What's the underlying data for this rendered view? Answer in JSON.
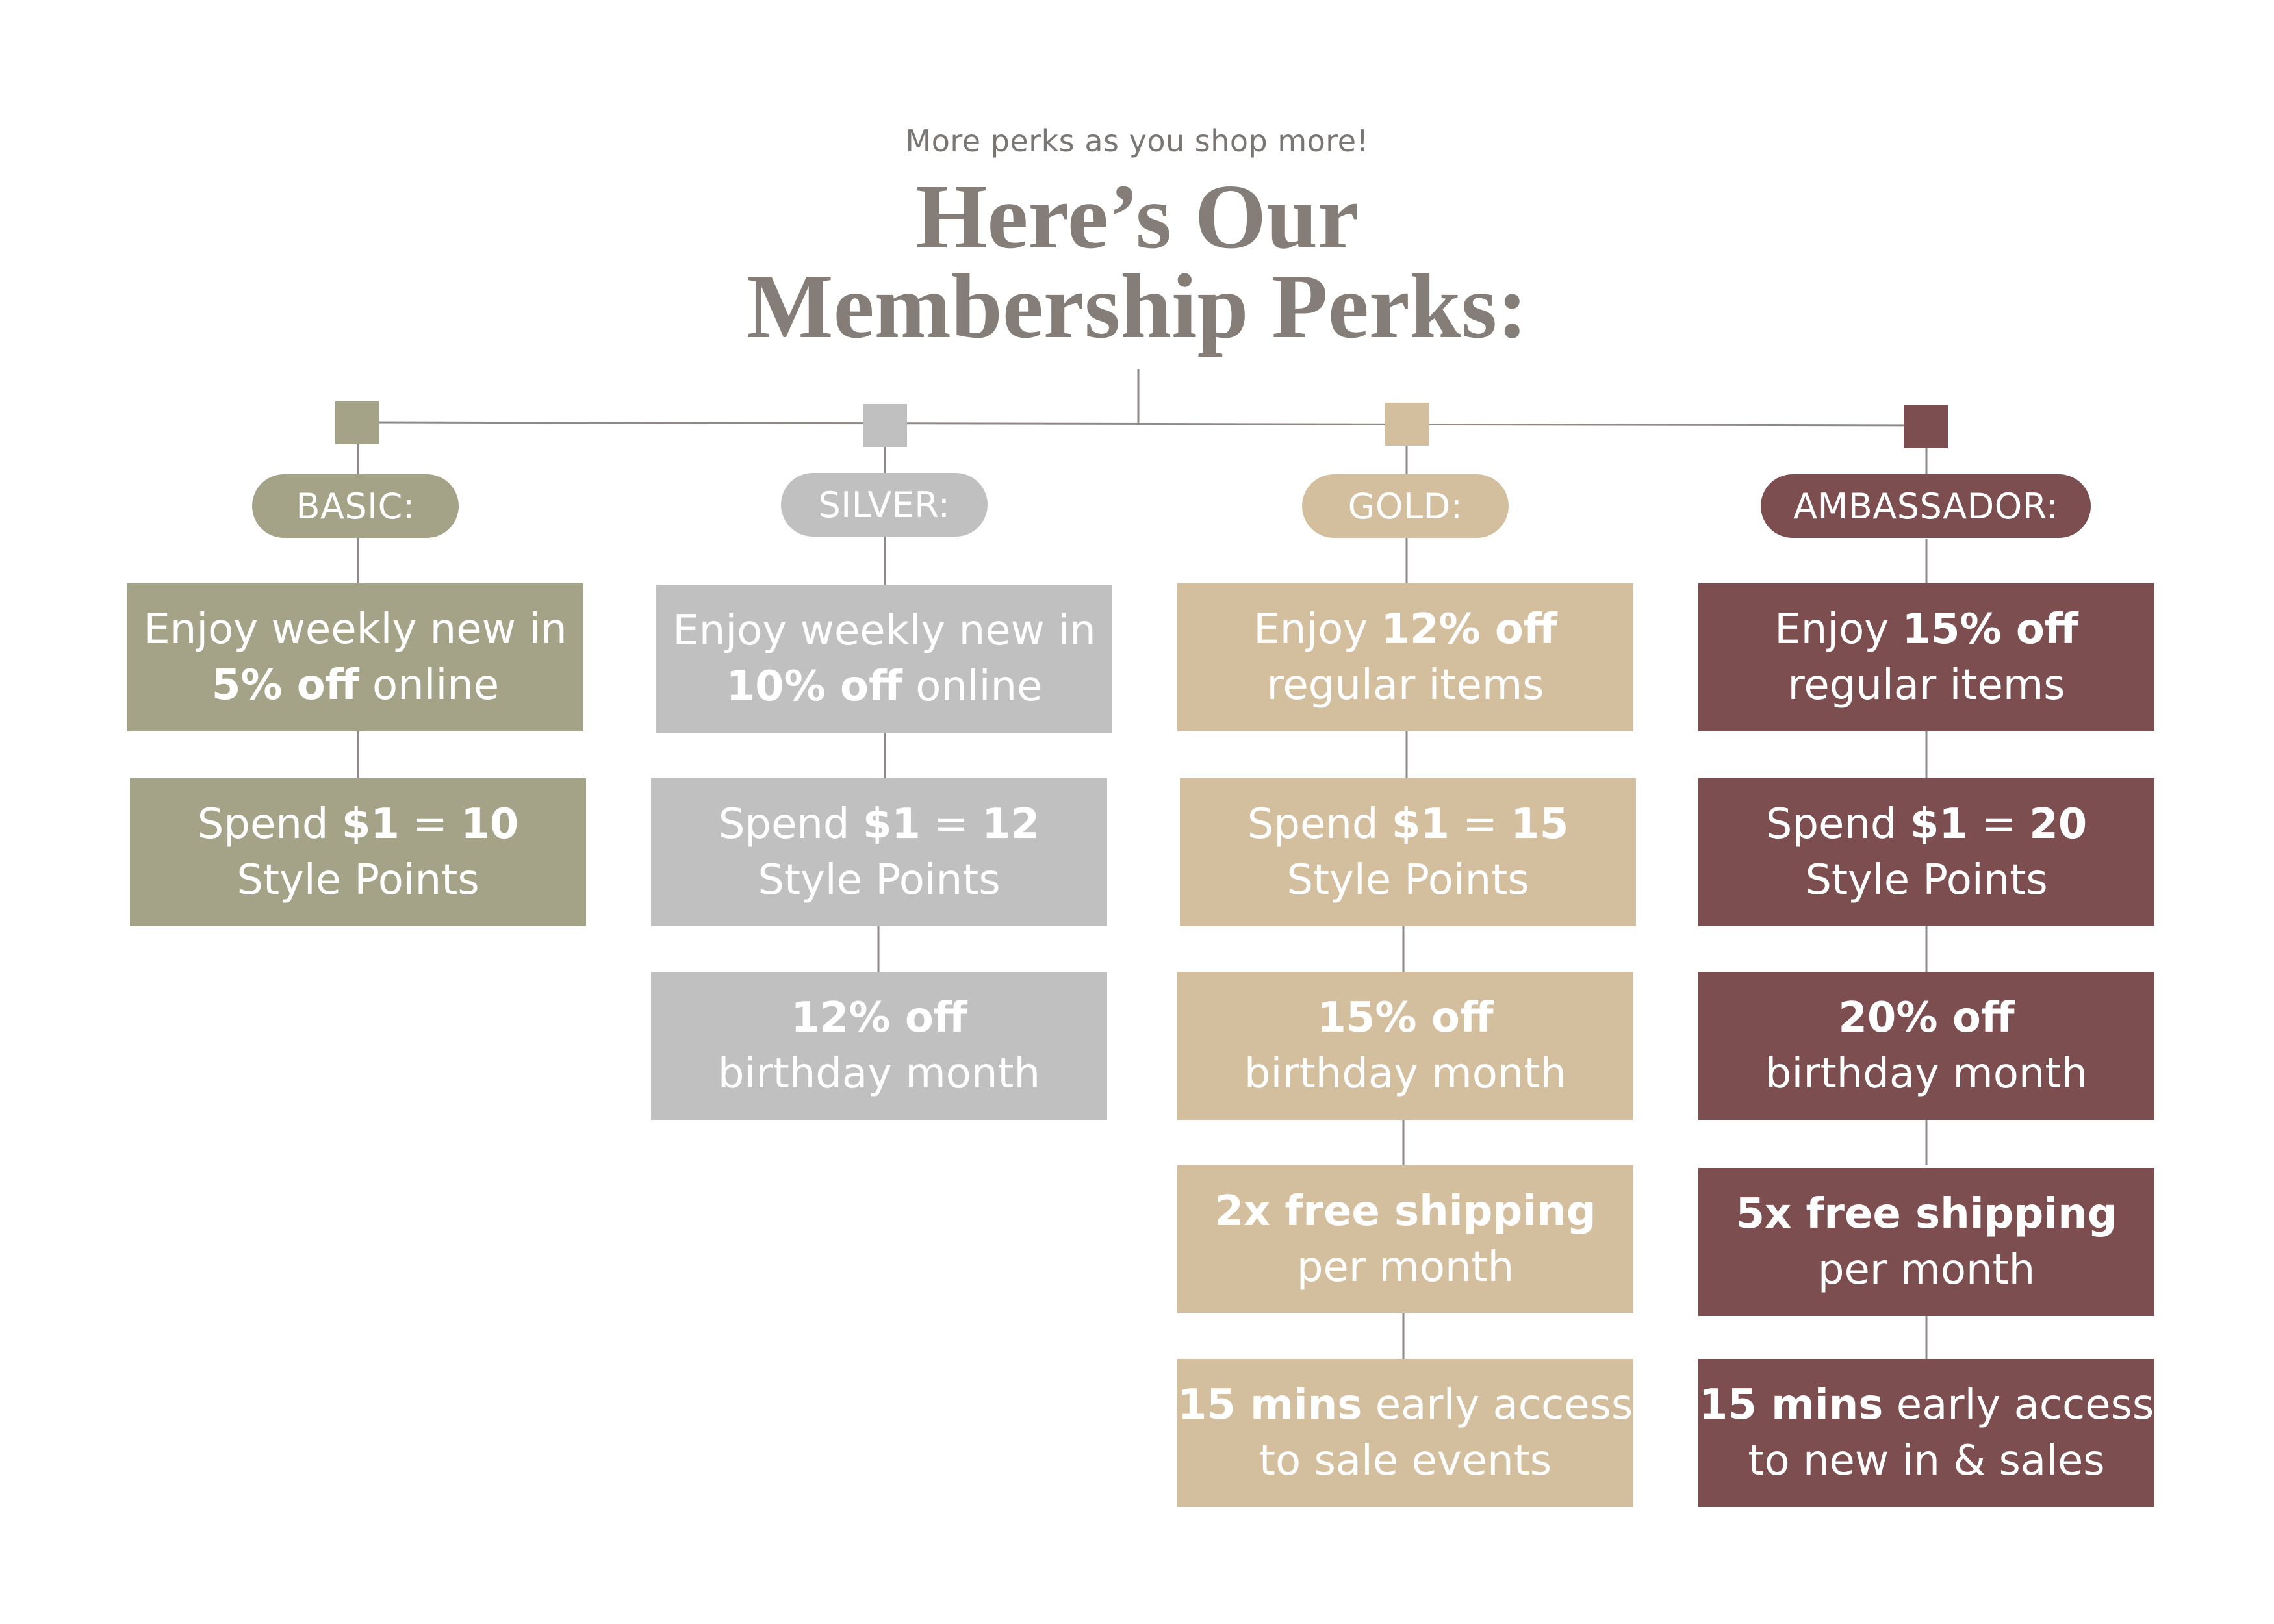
{
  "header": {
    "subtitle": "More perks as you shop more!",
    "title_line1": "Here’s Our",
    "title_line2": "Membership Perks:"
  },
  "colors": {
    "basic": "#a4a387",
    "silver": "#bfc0bf",
    "gold": "#d3bf9d",
    "ambassador": "#7d4e50",
    "title": "#857d77",
    "connector": "#8f8a87"
  },
  "tiers": [
    {
      "name": "BASIC:",
      "perks": [
        {
          "line1": [
            "Enjoy weekly new in"
          ],
          "line2": [
            "5% off",
            " online"
          ]
        },
        {
          "line1": [
            "Spend ",
            "$1",
            " = ",
            "10"
          ],
          "line2": [
            "Style Points"
          ]
        }
      ]
    },
    {
      "name": "SILVER:",
      "perks": [
        {
          "line1": [
            "Enjoy weekly new in"
          ],
          "line2": [
            "10% off",
            " online"
          ]
        },
        {
          "line1": [
            "Spend ",
            "$1",
            " = ",
            "12"
          ],
          "line2": [
            "Style Points"
          ]
        },
        {
          "line1": [
            "12% off"
          ],
          "line2": [
            "birthday month"
          ]
        }
      ]
    },
    {
      "name": "GOLD:",
      "perks": [
        {
          "line1": [
            "Enjoy ",
            "12% off"
          ],
          "line2": [
            "regular items"
          ]
        },
        {
          "line1": [
            "Spend ",
            "$1",
            " = ",
            "15"
          ],
          "line2": [
            "Style Points"
          ]
        },
        {
          "line1": [
            "15% off"
          ],
          "line2": [
            "birthday month"
          ]
        },
        {
          "line1": [
            "2x free shipping"
          ],
          "line2": [
            "per month"
          ]
        },
        {
          "line1": [
            "15 mins",
            " early access"
          ],
          "line2": [
            "to sale events"
          ]
        }
      ]
    },
    {
      "name": "AMBASSADOR:",
      "perks": [
        {
          "line1": [
            "Enjoy ",
            "15% off"
          ],
          "line2": [
            "regular items"
          ]
        },
        {
          "line1": [
            "Spend ",
            "$1",
            " = ",
            "20"
          ],
          "line2": [
            "Style Points"
          ]
        },
        {
          "line1": [
            "20% off"
          ],
          "line2": [
            "birthday month"
          ]
        },
        {
          "line1": [
            "5x free shipping"
          ],
          "line2": [
            "per month"
          ]
        },
        {
          "line1": [
            "15 mins",
            " early access"
          ],
          "line2": [
            "to new in & sales"
          ]
        }
      ]
    }
  ]
}
